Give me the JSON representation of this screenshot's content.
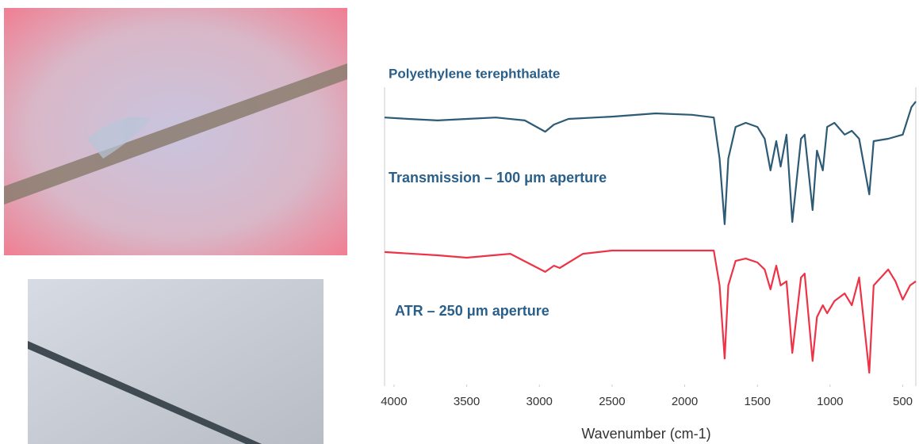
{
  "chart_data": {
    "type": "line",
    "title": "Polyethylene terephthalate",
    "xlabel": "Wavenumber (cm-1)",
    "xlim": [
      4065,
      410
    ],
    "ylim": [
      0,
      100
    ],
    "xticks": [
      4000,
      3500,
      3000,
      2500,
      2000,
      1500,
      1000,
      500
    ],
    "series": [
      {
        "name": "Transmission – 100 μm aperture",
        "color": "#2d5a75",
        "x": [
          4065,
          3900,
          3700,
          3500,
          3300,
          3100,
          2960,
          2900,
          2800,
          2500,
          2200,
          1950,
          1800,
          1760,
          1725,
          1700,
          1650,
          1580,
          1500,
          1450,
          1410,
          1370,
          1340,
          1300,
          1260,
          1200,
          1175,
          1120,
          1090,
          1050,
          1020,
          970,
          900,
          850,
          800,
          730,
          700,
          600,
          500,
          440,
          410
        ],
        "values": [
          90.3,
          89.8,
          89.3,
          89.8,
          90.3,
          89.3,
          85.5,
          87.9,
          89.8,
          90.6,
          91.7,
          91.2,
          90.3,
          76.4,
          54.2,
          76.4,
          87.1,
          88.5,
          87.1,
          83.1,
          72.4,
          82.3,
          73.7,
          84.5,
          55.0,
          83.1,
          84.5,
          59.0,
          79.1,
          72.4,
          87.1,
          88.5,
          84.5,
          85.8,
          83.1,
          64.3,
          82.3,
          83.1,
          84.5,
          93.8,
          95.7
        ]
      },
      {
        "name": "ATR – 250 μm aperture",
        "color": "#ee3346",
        "x": [
          4065,
          3700,
          3500,
          3200,
          2960,
          2900,
          2860,
          2700,
          2500,
          2200,
          1800,
          1760,
          1725,
          1700,
          1650,
          1580,
          1500,
          1450,
          1410,
          1370,
          1340,
          1300,
          1260,
          1200,
          1175,
          1120,
          1090,
          1050,
          1020,
          970,
          900,
          850,
          800,
          730,
          700,
          600,
          550,
          500,
          450,
          410
        ],
        "values": [
          44.8,
          43.7,
          42.9,
          44.2,
          38.1,
          40.2,
          39.4,
          44.2,
          45.3,
          45.3,
          45.3,
          33.5,
          8.8,
          33.5,
          41.8,
          42.6,
          41.3,
          38.9,
          32.2,
          40.2,
          33.5,
          34.9,
          10.7,
          36.2,
          37.5,
          8.0,
          22.8,
          26.8,
          24.1,
          28.2,
          30.8,
          26.8,
          36.2,
          4.0,
          33.5,
          38.9,
          34.9,
          28.7,
          33.5,
          34.9
        ]
      }
    ]
  }
}
